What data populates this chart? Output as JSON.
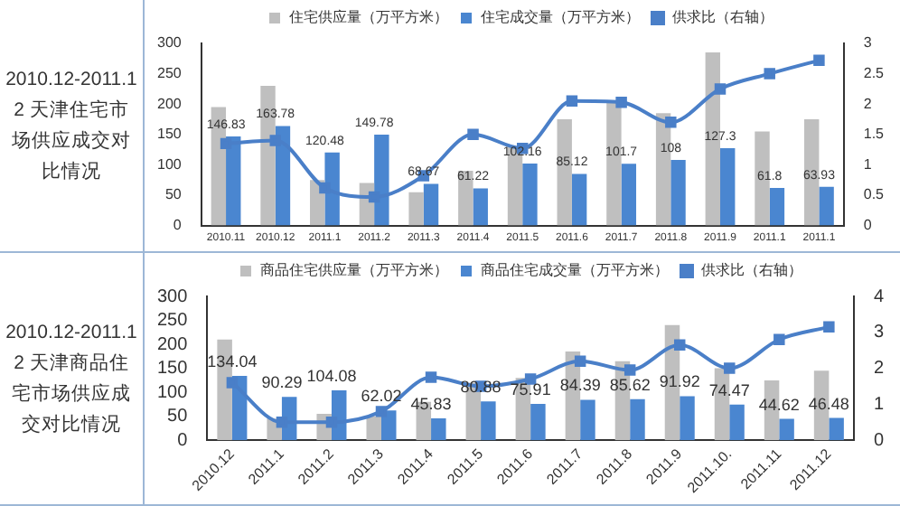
{
  "chart_data": [
    {
      "type": "bar",
      "title": "2010.12-2011.12 天津住宅市场供应成交对比情况",
      "categories": [
        "2010.11",
        "2010.12",
        "2011.1",
        "2011.2",
        "2011.3",
        "2011.4",
        "2011.5",
        "2011.6",
        "2011.7",
        "2011.8",
        "2011.9",
        "2011.1",
        "2011.1"
      ],
      "series": [
        {
          "name": "住宅供应量（万平方米）",
          "color": "#bfbfbf",
          "values": [
            195,
            230,
            75,
            70,
            55,
            90,
            130,
            175,
            205,
            185,
            285,
            155,
            175
          ]
        },
        {
          "name": "住宅成交量（万平方米）",
          "color": "#4a86d0",
          "values": [
            146.83,
            163.78,
            120.48,
            149.78,
            68.67,
            61.22,
            102.16,
            85.12,
            101.7,
            108,
            127.3,
            61.8,
            63.93
          ],
          "value_labels": [
            "146.83",
            "163.78",
            "120.48",
            "149.78",
            "68.67",
            "61.22",
            "102.16",
            "85.12",
            "101.7",
            "108",
            "127.3",
            "61.8",
            "63.93"
          ]
        },
        {
          "name": "供求比（右轴）",
          "color": "#4a7fc8",
          "type": "line",
          "axis": "y2",
          "values": [
            1.35,
            1.4,
            0.62,
            0.47,
            0.82,
            1.5,
            1.27,
            2.05,
            2.03,
            1.7,
            2.25,
            2.5,
            2.72
          ]
        }
      ],
      "ylim": [
        0,
        300
      ],
      "yticks": [
        0,
        50,
        100,
        150,
        200,
        250,
        300
      ],
      "y2lim": [
        0,
        3
      ],
      "y2ticks": [
        0,
        0.5,
        1,
        1.5,
        2,
        2.5,
        3
      ],
      "legend": "top",
      "marker": "square"
    },
    {
      "type": "bar",
      "title": "2010.12-2011.12 天津商品住宅市场供应成交对比情况",
      "categories": [
        "2010.12",
        "2011.1",
        "2011.2",
        "2011.3",
        "2011.4",
        "2011.5",
        "2011.6",
        "2011.7",
        "2011.8",
        "2011.9",
        "2011.10.",
        "2011.11",
        "2011.12"
      ],
      "series": [
        {
          "name": "商品住宅供应量（万平方米）",
          "color": "#bfbfbf",
          "values": [
            210,
            45,
            55,
            50,
            80,
            120,
            130,
            185,
            165,
            240,
            150,
            125,
            145
          ]
        },
        {
          "name": "商品住宅成交量（万平方米）",
          "color": "#4a86d0",
          "values": [
            134.04,
            90.29,
            104.08,
            62.02,
            45.83,
            80.88,
            75.91,
            84.39,
            85.62,
            91.92,
            74.47,
            44.62,
            46.48
          ],
          "value_labels": [
            "134.04",
            "90.29",
            "104.08",
            "62.02",
            "45.83",
            "80.88",
            "75.91",
            "84.39",
            "85.62",
            "91.92",
            "74.47",
            "44.62",
            "46.48"
          ]
        },
        {
          "name": "供求比（右轴）",
          "color": "#4a7fc8",
          "type": "line",
          "axis": "y2",
          "values": [
            1.6,
            0.5,
            0.5,
            0.8,
            1.75,
            1.5,
            1.7,
            2.2,
            1.95,
            2.65,
            2.0,
            2.8,
            3.15
          ]
        }
      ],
      "ylim": [
        0,
        300
      ],
      "yticks": [
        0,
        50,
        100,
        150,
        200,
        250,
        300
      ],
      "y2lim": [
        0,
        4
      ],
      "y2ticks": [
        0,
        1,
        2,
        3,
        4
      ],
      "legend": "top",
      "marker": "square"
    }
  ]
}
